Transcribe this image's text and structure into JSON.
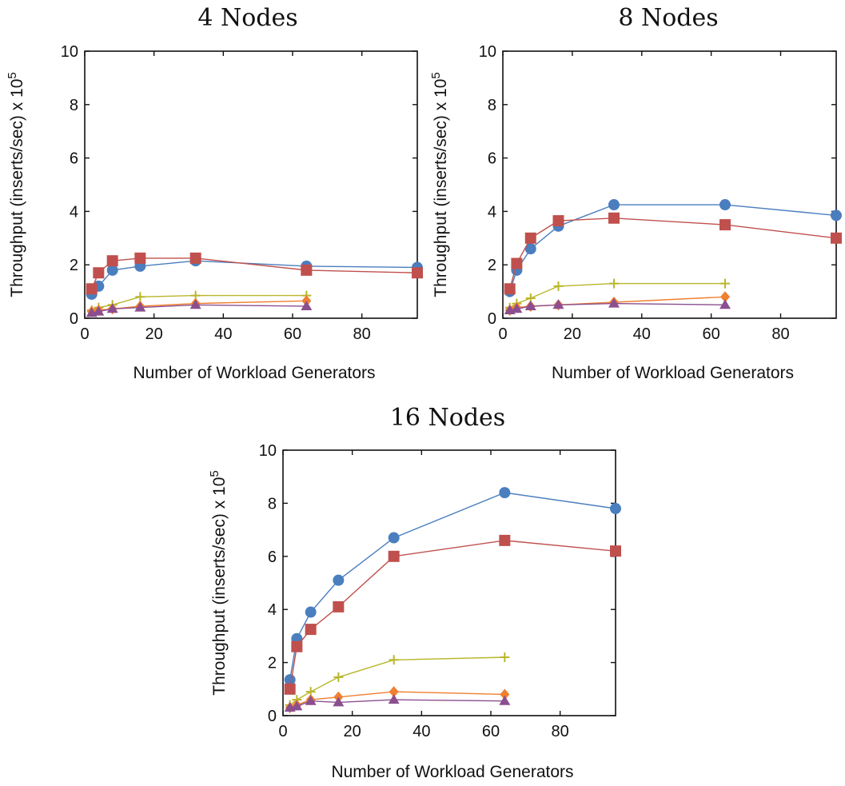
{
  "chart_data": [
    {
      "type": "line",
      "title": "4 Nodes",
      "xlabel": "Number of Workload Generators",
      "ylabel": "Throughput (inserts/sec) x 10",
      "ylabel_exponent": "5",
      "xlim": [
        0,
        96
      ],
      "ylim": [
        0,
        10
      ],
      "xticks": [
        "0",
        "20",
        "40",
        "60",
        "80"
      ],
      "yticks": [
        "0",
        "2",
        "4",
        "6",
        "8",
        "10"
      ],
      "grid": false,
      "series": [
        {
          "color": "#4a7ebf",
          "marker": "circle",
          "points": [
            [
              2,
              0.9
            ],
            [
              4,
              1.2
            ],
            [
              8,
              1.8
            ],
            [
              16,
              1.95
            ],
            [
              32,
              2.15
            ],
            [
              64,
              1.95
            ],
            [
              96,
              1.9
            ]
          ]
        },
        {
          "color": "#c0504d",
          "marker": "square",
          "points": [
            [
              2,
              1.1
            ],
            [
              4,
              1.7
            ],
            [
              8,
              2.15
            ],
            [
              16,
              2.25
            ],
            [
              32,
              2.25
            ],
            [
              64,
              1.8
            ],
            [
              96,
              1.7
            ]
          ]
        },
        {
          "color": "#b8b62a",
          "marker": "plus",
          "points": [
            [
              2,
              0.3
            ],
            [
              4,
              0.4
            ],
            [
              8,
              0.5
            ],
            [
              16,
              0.8
            ],
            [
              32,
              0.85
            ],
            [
              64,
              0.85
            ]
          ]
        },
        {
          "color": "#f07f30",
          "marker": "diamond",
          "points": [
            [
              2,
              0.25
            ],
            [
              4,
              0.3
            ],
            [
              8,
              0.35
            ],
            [
              16,
              0.45
            ],
            [
              32,
              0.55
            ],
            [
              64,
              0.65
            ]
          ]
        },
        {
          "color": "#8b4f8f",
          "marker": "triangle",
          "points": [
            [
              2,
              0.2
            ],
            [
              4,
              0.25
            ],
            [
              8,
              0.35
            ],
            [
              16,
              0.4
            ],
            [
              32,
              0.5
            ],
            [
              64,
              0.45
            ]
          ]
        }
      ]
    },
    {
      "type": "line",
      "title": "8 Nodes",
      "xlabel": "Number of Workload Generators",
      "ylabel": "Throughput (inserts/sec) x 10",
      "ylabel_exponent": "5",
      "xlim": [
        0,
        96
      ],
      "ylim": [
        0,
        10
      ],
      "xticks": [
        "0",
        "20",
        "40",
        "60",
        "80"
      ],
      "yticks": [
        "0",
        "2",
        "4",
        "6",
        "8",
        "10"
      ],
      "grid": false,
      "series": [
        {
          "color": "#4a7ebf",
          "marker": "circle",
          "points": [
            [
              2,
              1.0
            ],
            [
              4,
              1.8
            ],
            [
              8,
              2.6
            ],
            [
              16,
              3.45
            ],
            [
              32,
              4.25
            ],
            [
              64,
              4.25
            ],
            [
              96,
              3.85
            ]
          ]
        },
        {
          "color": "#c0504d",
          "marker": "square",
          "points": [
            [
              2,
              1.1
            ],
            [
              4,
              2.05
            ],
            [
              8,
              3.0
            ],
            [
              16,
              3.65
            ],
            [
              32,
              3.75
            ],
            [
              64,
              3.5
            ],
            [
              96,
              3.0
            ]
          ]
        },
        {
          "color": "#b8b62a",
          "marker": "plus",
          "points": [
            [
              2,
              0.4
            ],
            [
              4,
              0.55
            ],
            [
              8,
              0.75
            ],
            [
              16,
              1.2
            ],
            [
              32,
              1.3
            ],
            [
              64,
              1.3
            ]
          ]
        },
        {
          "color": "#f07f30",
          "marker": "diamond",
          "points": [
            [
              2,
              0.3
            ],
            [
              4,
              0.4
            ],
            [
              8,
              0.45
            ],
            [
              16,
              0.5
            ],
            [
              32,
              0.6
            ],
            [
              64,
              0.8
            ]
          ]
        },
        {
          "color": "#8b4f8f",
          "marker": "triangle",
          "points": [
            [
              2,
              0.3
            ],
            [
              4,
              0.35
            ],
            [
              8,
              0.45
            ],
            [
              16,
              0.5
            ],
            [
              32,
              0.55
            ],
            [
              64,
              0.5
            ]
          ]
        }
      ]
    },
    {
      "type": "line",
      "title": "16 Nodes",
      "xlabel": "Number of Workload Generators",
      "ylabel": "Throughput (inserts/sec) x 10",
      "ylabel_exponent": "5",
      "xlim": [
        0,
        96
      ],
      "ylim": [
        0,
        10
      ],
      "xticks": [
        "0",
        "20",
        "40",
        "60",
        "80"
      ],
      "yticks": [
        "0",
        "2",
        "4",
        "6",
        "8",
        "10"
      ],
      "grid": false,
      "series": [
        {
          "color": "#4a7ebf",
          "marker": "circle",
          "points": [
            [
              2,
              1.35
            ],
            [
              4,
              2.9
            ],
            [
              8,
              3.9
            ],
            [
              16,
              5.1
            ],
            [
              32,
              6.7
            ],
            [
              64,
              8.4
            ],
            [
              96,
              7.8
            ]
          ]
        },
        {
          "color": "#c0504d",
          "marker": "square",
          "points": [
            [
              2,
              1.0
            ],
            [
              4,
              2.6
            ],
            [
              8,
              3.25
            ],
            [
              16,
              4.1
            ],
            [
              32,
              6.0
            ],
            [
              64,
              6.6
            ],
            [
              96,
              6.2
            ]
          ]
        },
        {
          "color": "#b8b62a",
          "marker": "plus",
          "points": [
            [
              2,
              0.4
            ],
            [
              4,
              0.6
            ],
            [
              8,
              0.9
            ],
            [
              16,
              1.45
            ],
            [
              32,
              2.1
            ],
            [
              64,
              2.2
            ]
          ]
        },
        {
          "color": "#f07f30",
          "marker": "diamond",
          "points": [
            [
              2,
              0.3
            ],
            [
              4,
              0.4
            ],
            [
              8,
              0.6
            ],
            [
              16,
              0.7
            ],
            [
              32,
              0.9
            ],
            [
              64,
              0.8
            ]
          ]
        },
        {
          "color": "#8b4f8f",
          "marker": "triangle",
          "points": [
            [
              2,
              0.3
            ],
            [
              4,
              0.35
            ],
            [
              8,
              0.55
            ],
            [
              16,
              0.5
            ],
            [
              32,
              0.6
            ],
            [
              64,
              0.55
            ]
          ]
        }
      ]
    }
  ]
}
